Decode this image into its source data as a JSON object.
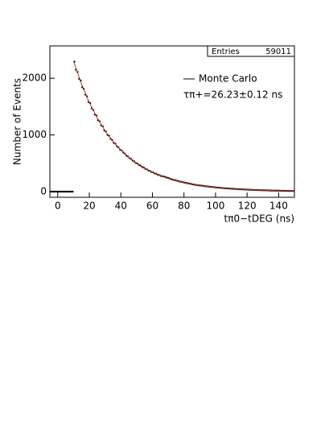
{
  "chart_data": {
    "type": "scatter",
    "xlabel": "tπ0−tDEG (ns)",
    "ylabel": "Number of Events",
    "annotation": "τπ+=26.23±0.12 ns",
    "stats": {
      "label": "Entries",
      "value": 59011
    },
    "xlim": [
      -5,
      150
    ],
    "ylim": [
      -100,
      2570
    ],
    "xticks": [
      0,
      20,
      40,
      60,
      80,
      100,
      120,
      140
    ],
    "yticks": [
      0,
      1000,
      2000
    ],
    "series": [
      {
        "color": "#000000",
        "x": [
          -4.5,
          -3.5,
          -2.5,
          -1.5,
          -0.5,
          0.5,
          1.5,
          2.5,
          3.5,
          4.5,
          5.5,
          6.5,
          7.5,
          8.5,
          9.5,
          10.5,
          11.5,
          12.5,
          13.5,
          14.5,
          15.5,
          16.5,
          17.5,
          18.5,
          19.5,
          20.5,
          21.5,
          22.5,
          23.5,
          24.5,
          25.5,
          26.5,
          27.5,
          28.5,
          29.5,
          30.5,
          31.5,
          32.5,
          33.5,
          34.5,
          35.5,
          36.5,
          37.5,
          38.5,
          39.5,
          40.5,
          41.5,
          42.5,
          43.5,
          44.5,
          45.5,
          46.5,
          47.5,
          48.5,
          49.5,
          50.5,
          51.5,
          52.5,
          53.5,
          54.5,
          55.5,
          56.5,
          57.5,
          58.5,
          59.5,
          60.5,
          61.5,
          62.5,
          63.5,
          64.5,
          65.5,
          66.5,
          67.5,
          68.5,
          69.5,
          70.5,
          71.5,
          72.5,
          73.5,
          74.5,
          75.5,
          76.5,
          77.5,
          78.5,
          79.5,
          80.5,
          81.5,
          82.5,
          83.5,
          84.5,
          85.5,
          86.5,
          87.5,
          88.5,
          89.5,
          90.5,
          91.5,
          92.5,
          93.5,
          94.5,
          95.5,
          96.5,
          97.5,
          98.5,
          99.5,
          100.5,
          101.5,
          102.5,
          103.5,
          104.5,
          105.5,
          106.5,
          107.5,
          108.5,
          109.5,
          110.5,
          111.5,
          112.5,
          113.5,
          114.5,
          115.5,
          116.5,
          117.5,
          118.5,
          119.5,
          120.5,
          121.5,
          122.5,
          123.5,
          124.5,
          125.5,
          126.5,
          127.5,
          128.5,
          129.5,
          130.5,
          131.5,
          132.5,
          133.5,
          134.5,
          135.5,
          136.5,
          137.5,
          138.5,
          139.5,
          140.5,
          141.5,
          142.5,
          143.5,
          144.5,
          145.5,
          146.5,
          147.5,
          148.5,
          149.5
        ],
        "values": [
          0,
          0,
          0,
          0,
          0,
          0,
          0,
          0,
          0,
          0,
          0,
          0,
          0,
          0,
          0,
          2290,
          2150,
          2110,
          1990,
          1960,
          1840,
          1810,
          1710,
          1680,
          1580,
          1560,
          1470,
          1440,
          1360,
          1340,
          1260,
          1240,
          1170,
          1150,
          1080,
          1060,
          1000,
          985,
          930,
          910,
          860,
          845,
          800,
          780,
          740,
          725,
          690,
          670,
          635,
          620,
          590,
          575,
          548,
          532,
          505,
          495,
          470,
          458,
          435,
          425,
          402,
          393,
          372,
          364,
          345,
          338,
          320,
          314,
          296,
          290,
          275,
          270,
          262,
          252,
          244,
          236,
          222,
          215,
          206,
          200,
          192,
          185,
          176,
          172,
          165,
          158,
          152,
          147,
          140,
          136,
          128,
          125,
          118,
          116,
          110,
          107,
          104,
          100,
          96,
          92,
          89,
          86,
          83,
          79,
          77,
          73,
          71,
          68,
          66,
          63,
          61,
          58,
          57,
          54,
          53,
          50,
          49,
          46,
          45,
          43,
          42,
          40,
          39,
          37,
          36,
          34,
          34,
          32,
          31,
          29,
          29,
          27,
          27,
          25,
          25,
          23,
          23,
          22,
          21,
          20,
          19,
          18,
          18,
          17,
          17,
          16,
          15,
          14,
          14,
          13,
          13,
          12,
          12,
          11,
          11
        ]
      },
      {
        "name": "Monte Carlo",
        "color": "#b03a2e",
        "style": "line",
        "x": [
          10,
          15,
          20,
          25,
          30,
          35,
          40,
          45,
          50,
          55,
          60,
          65,
          70,
          75,
          80,
          85,
          90,
          95,
          100,
          105,
          110,
          115,
          120,
          125,
          130,
          135,
          140,
          145,
          150
        ],
        "values": [
          2300,
          1901,
          1571,
          1298,
          1073,
          887,
          733,
          605,
          500,
          413,
          342,
          282,
          233,
          193,
          159,
          132,
          109,
          90,
          74,
          61,
          51,
          42,
          35,
          29,
          24,
          20,
          16,
          13,
          11
        ]
      }
    ]
  }
}
